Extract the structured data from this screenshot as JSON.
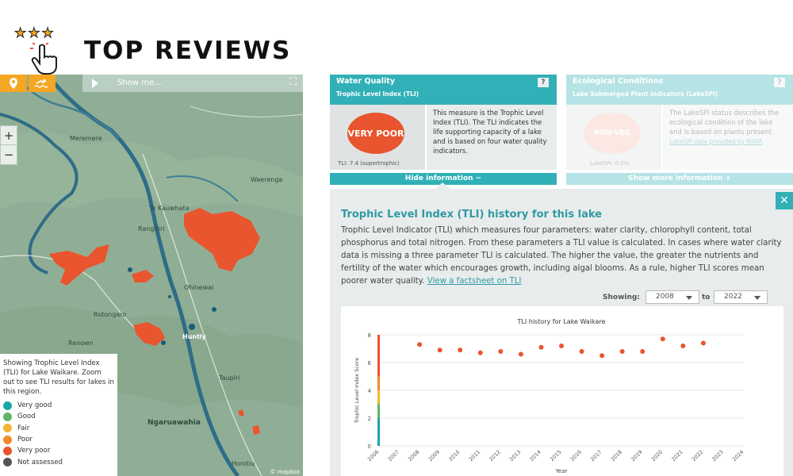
{
  "brand": {
    "title": "TOP REVIEWS",
    "stars": [
      "★",
      "★",
      "★"
    ]
  },
  "map": {
    "toolbar": {
      "show_me": "Show me..."
    },
    "zoom": {
      "in": "+",
      "out": "−"
    },
    "places": [
      "Meremere",
      "Te Kauwhata",
      "Waerenga",
      "Rangiriri",
      "Ohinewai",
      "Rotongaro",
      "Renown",
      "Huntly",
      "Taupiri",
      "Ngaruawahia",
      "Horotiu"
    ],
    "legend": {
      "description": "Showing Trophic Level Index (TLI) for Lake Waikare. Zoom out to see TLI results for lakes in this region.",
      "items": [
        {
          "label": "Very good",
          "color": "#1aa6a8"
        },
        {
          "label": "Good",
          "color": "#62b56a"
        },
        {
          "label": "Fair",
          "color": "#f2b531"
        },
        {
          "label": "Poor",
          "color": "#f08a2b"
        },
        {
          "label": "Very poor",
          "color": "#e8552e"
        },
        {
          "label": "Not assessed",
          "color": "#555555"
        }
      ]
    },
    "attribution": "© mapbox"
  },
  "cards": {
    "water_quality": {
      "title": "Water Quality",
      "subtitle": "Trophic Level Index (TLI)",
      "badge": "VERY POOR",
      "badge_color": "#e8552e",
      "score": "TLI: 7.4 (supertrophic)",
      "description": "This measure is the Trophic Level Index (TLI). The TLI indicates the life supporting capacity of a lake and is based on four water quality indicators.",
      "action": "Hide information −",
      "help": "?"
    },
    "ecological": {
      "title": "Ecological Conditions",
      "subtitle": "Lake Submerged Plant Indicators (LakeSPI)",
      "badge": "NON-VEG",
      "badge_color": "#f6c0b2",
      "score": "LakeSPI: 0.0%",
      "description": "The LakeSPI status describes the ecological condition of the lake and is based on plants present.",
      "link": "LakeSPI data provided by NIWA",
      "action": "Show more information +",
      "help": "?"
    }
  },
  "info": {
    "title": "Trophic Level Index (TLI) history for this lake",
    "text": "Trophic Level Indicator (TLI) which measures four parameters: water clarity, chlorophyll content, total phosphorus and total nitrogen. From these parameters a TLI value is calculated. In cases where water clarity data is missing a three parameter TLI is calculated. The higher the value, the greater the nutrients and fertility of the water which encourages growth, including algal blooms. As a rule, higher TLI scores mean poorer water quality. ",
    "link": "View a factsheet on TLI",
    "showing_label": "Showing:",
    "from": "2008",
    "to_label": "to",
    "to": "2022",
    "close": "✕"
  },
  "chart_data": {
    "type": "scatter",
    "title": "TLI history for Lake Waikare",
    "xlabel": "Year",
    "ylabel": "Trophic Level Index Score",
    "xlim": [
      2006,
      2024
    ],
    "ylim": [
      0,
      8
    ],
    "x_ticks": [
      2006,
      2007,
      2008,
      2009,
      2010,
      2011,
      2012,
      2013,
      2014,
      2015,
      2016,
      2017,
      2018,
      2019,
      2020,
      2021,
      2022,
      2023,
      2024
    ],
    "y_ticks": [
      0,
      2,
      4,
      6,
      8
    ],
    "x": [
      2008,
      2009,
      2010,
      2011,
      2012,
      2013,
      2014,
      2015,
      2016,
      2017,
      2018,
      2019,
      2020,
      2021,
      2022
    ],
    "values": [
      7.3,
      6.9,
      6.9,
      6.7,
      6.8,
      6.6,
      7.1,
      7.2,
      6.8,
      6.5,
      6.8,
      6.8,
      7.7,
      7.2,
      7.4
    ],
    "point_color": "#e8552e",
    "band_colors": [
      {
        "from": 0,
        "to": 2,
        "color": "#1aa6a8"
      },
      {
        "from": 2,
        "to": 3,
        "color": "#62b56a"
      },
      {
        "from": 3,
        "to": 4,
        "color": "#f2b531"
      },
      {
        "from": 4,
        "to": 5,
        "color": "#f08a2b"
      },
      {
        "from": 5,
        "to": 8,
        "color": "#e8552e"
      }
    ],
    "grid": true,
    "legend": "none"
  }
}
